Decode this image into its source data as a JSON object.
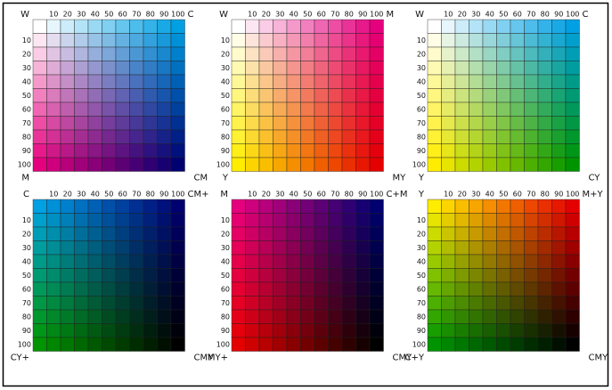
{
  "inks": {
    "C": "#00a0e3",
    "M": "#e5007e",
    "Y": "#ffed00"
  },
  "panels": [
    {
      "base": [],
      "across": "C",
      "down": "M",
      "corners": [
        "W",
        "C",
        "M",
        "CM"
      ],
      "cols": [
        10,
        20,
        30,
        40,
        50,
        60,
        70,
        80,
        90,
        100
      ],
      "rows": [
        10,
        20,
        30,
        40,
        50,
        60,
        70,
        80,
        90,
        100
      ]
    },
    {
      "base": [],
      "across": "M",
      "down": "Y",
      "corners": [
        "W",
        "M",
        "Y",
        "MY"
      ],
      "cols": [
        10,
        20,
        30,
        40,
        50,
        60,
        70,
        80,
        90,
        100
      ],
      "rows": [
        10,
        20,
        30,
        40,
        50,
        60,
        70,
        80,
        90,
        100
      ]
    },
    {
      "base": [],
      "across": "C",
      "down": "Y",
      "corners": [
        "W",
        "C",
        "Y",
        "CY"
      ],
      "cols": [
        10,
        20,
        30,
        40,
        50,
        60,
        70,
        80,
        90,
        100
      ],
      "rows": [
        10,
        20,
        30,
        40,
        50,
        60,
        70,
        80,
        90,
        100
      ]
    },
    {
      "base": [
        "C"
      ],
      "across": "M",
      "down": "Y",
      "corners": [
        "C",
        "CM+",
        "CY+",
        "CMY"
      ],
      "cols": [
        10,
        20,
        30,
        40,
        50,
        60,
        70,
        80,
        90,
        100
      ],
      "rows": [
        10,
        20,
        30,
        40,
        50,
        60,
        70,
        80,
        90,
        100
      ]
    },
    {
      "base": [
        "M"
      ],
      "across": "C",
      "down": "Y",
      "corners": [
        "M",
        "C+M",
        "MY+",
        "CMY"
      ],
      "cols": [
        10,
        20,
        30,
        40,
        50,
        60,
        70,
        80,
        90,
        100
      ],
      "rows": [
        10,
        20,
        30,
        40,
        50,
        60,
        70,
        80,
        90,
        100
      ]
    },
    {
      "base": [
        "Y"
      ],
      "across": "M",
      "down": "C",
      "corners": [
        "Y",
        "M+Y",
        "C+Y",
        "CMY"
      ],
      "cols": [
        10,
        20,
        30,
        40,
        50,
        60,
        70,
        80,
        90,
        100
      ],
      "rows": [
        10,
        20,
        30,
        40,
        50,
        60,
        70,
        80,
        90,
        100
      ]
    }
  ]
}
